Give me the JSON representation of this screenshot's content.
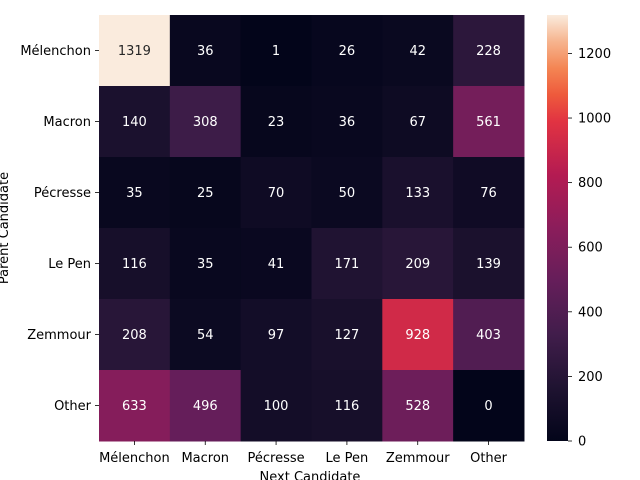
{
  "chart_data": {
    "type": "heatmap",
    "xlabel": "Next Candidate",
    "ylabel": "Parent Candidate",
    "x_categories": [
      "Mélenchon",
      "Macron",
      "Pécresse",
      "Le Pen",
      "Zemmour",
      "Other"
    ],
    "y_categories": [
      "Mélenchon",
      "Macron",
      "Pécresse",
      "Le Pen",
      "Zemmour",
      "Other"
    ],
    "values": [
      [
        1319,
        36,
        1,
        26,
        42,
        228
      ],
      [
        140,
        308,
        23,
        36,
        67,
        561
      ],
      [
        35,
        25,
        70,
        50,
        133,
        76
      ],
      [
        116,
        35,
        41,
        171,
        209,
        139
      ],
      [
        208,
        54,
        97,
        127,
        928,
        403
      ],
      [
        633,
        496,
        100,
        116,
        528,
        0
      ]
    ],
    "colorbar": {
      "range": [
        0,
        1319
      ],
      "ticks": [
        0,
        200,
        400,
        600,
        800,
        1000,
        1200
      ],
      "colormap": "rocket"
    }
  }
}
